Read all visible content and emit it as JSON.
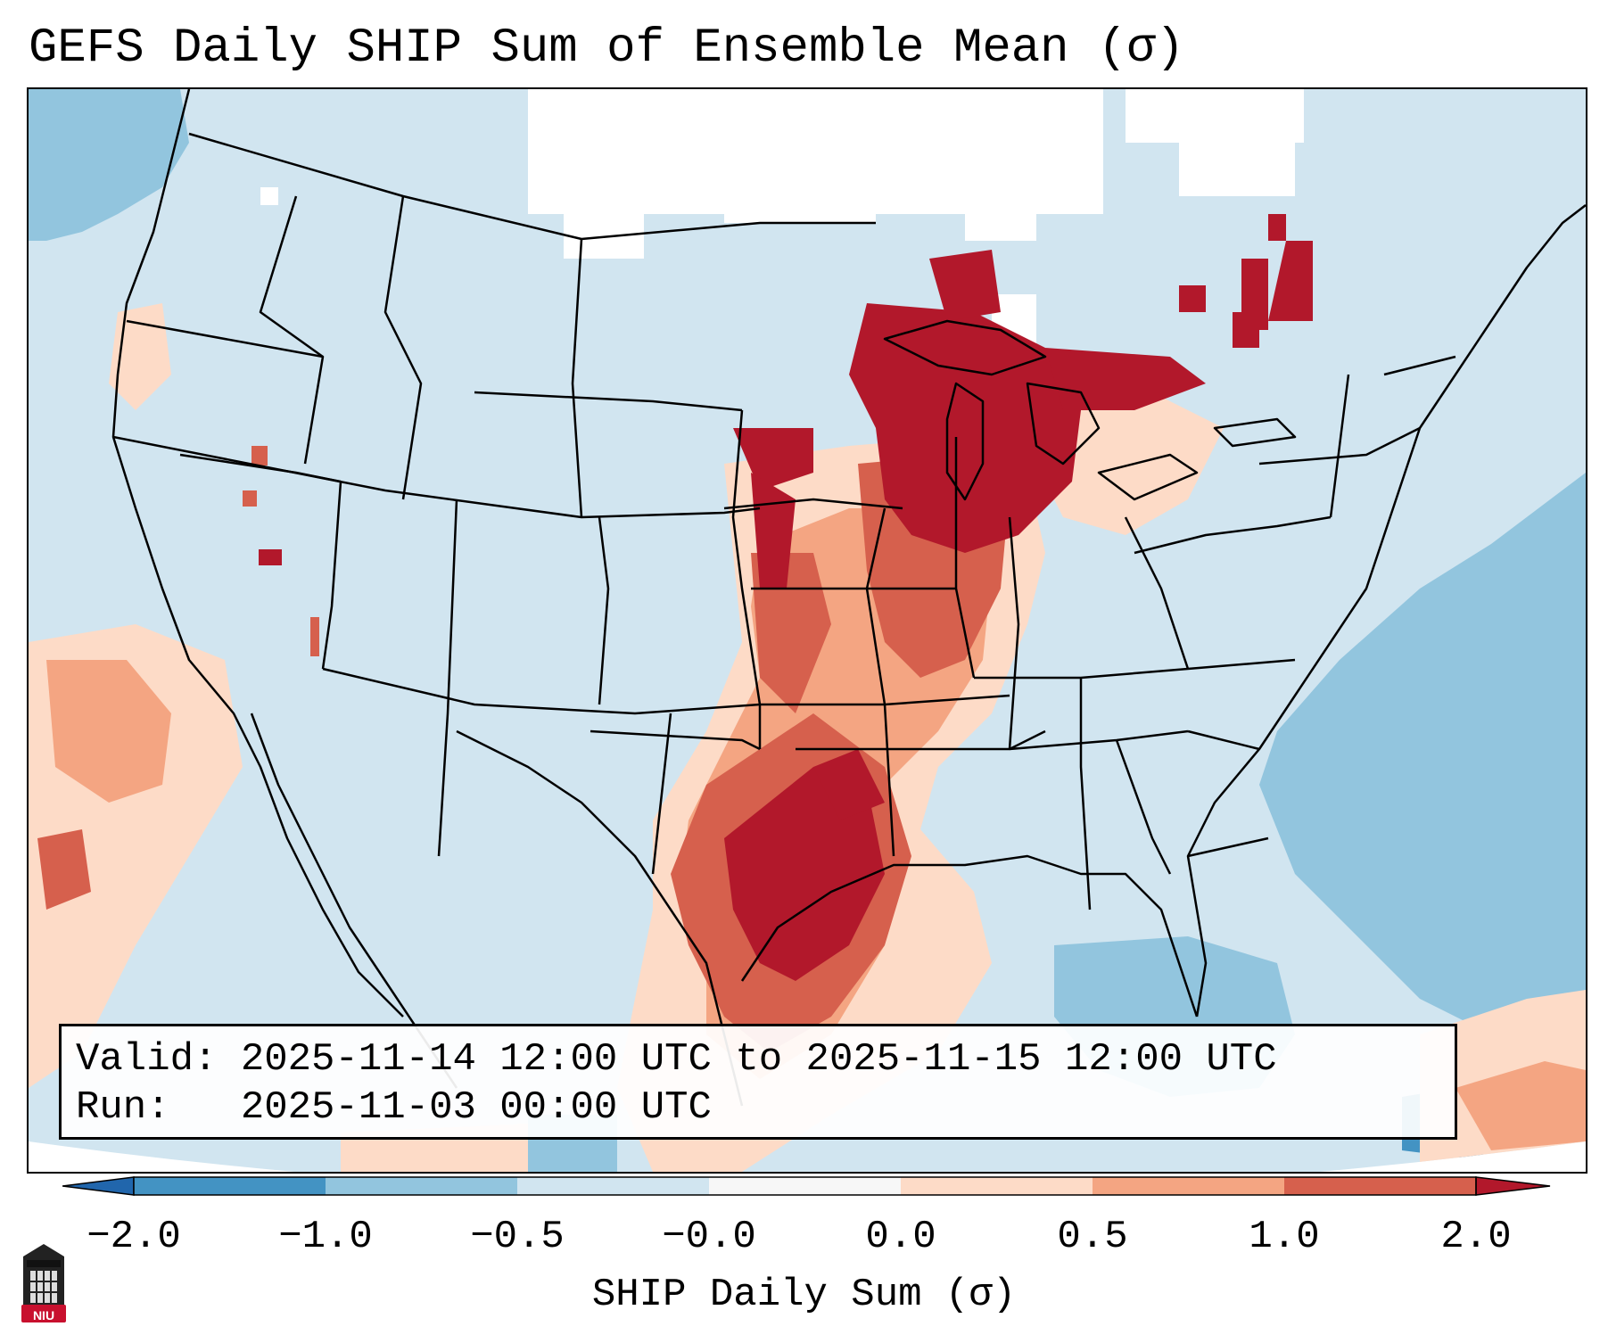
{
  "title": "GEFS Daily SHIP Sum of Ensemble Mean (σ)",
  "info": {
    "valid_line": "Valid: 2025-11-14 12:00 UTC to 2025-11-15 12:00 UTC",
    "run_line": "Run:   2025-11-03 00:00 UTC"
  },
  "colorbar": {
    "label": "SHIP Daily Sum (σ)",
    "ticks": [
      "−2.0",
      "−1.0",
      "−0.5",
      "−0.0",
      "0.0",
      "0.5",
      "1.0",
      "2.0"
    ],
    "colors": [
      "#4393c3",
      "#92c5de",
      "#d1e5f0",
      "#f7f7f7",
      "#fddbc7",
      "#f4a582",
      "#d6604d",
      "#b2182b"
    ],
    "extend": "both"
  },
  "map": {
    "region": "Contiguous United States",
    "colors": {
      "neg_strong": "#4393c3",
      "neg_mid": "#92c5de",
      "neg_weak": "#d1e5f0",
      "neutral": "#ffffff",
      "pos_weak": "#fddbc7",
      "pos_mid": "#f4a582",
      "pos_high": "#d6604d",
      "pos_strong": "#b2182b"
    }
  },
  "logo": {
    "text": "NIU",
    "icon": "niu-tower-logo-icon"
  }
}
